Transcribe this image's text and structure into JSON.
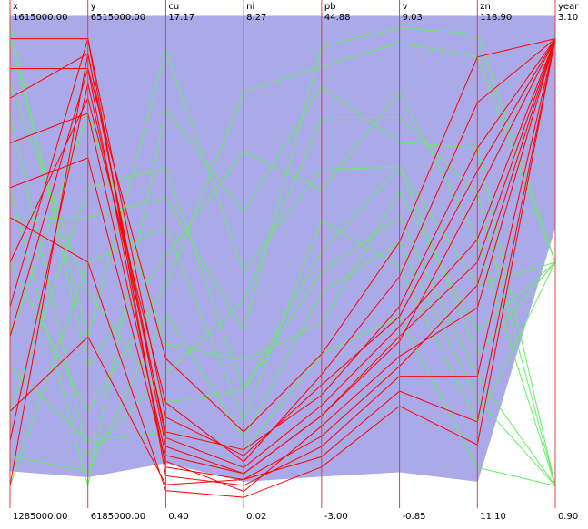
{
  "chart_data": {
    "type": "parallel",
    "axes": [
      {
        "name": "x",
        "ylim": [
          1285000,
          1615000
        ],
        "yticks": [
          {
            "value": 1285000,
            "label": "1285000.00"
          },
          {
            "value": 1615000,
            "label": "1615000.00"
          }
        ]
      },
      {
        "name": "y",
        "ylim": [
          6185000,
          6515000
        ],
        "yticks": [
          {
            "value": 6185000,
            "label": "6185000.00"
          },
          {
            "value": 6515000,
            "label": "6515000.00"
          }
        ]
      },
      {
        "name": "cu",
        "ylim": [
          0.4,
          17.17
        ],
        "yticks": [
          {
            "value": 0.4,
            "label": "0.40"
          },
          {
            "value": 17.17,
            "label": "17.17"
          }
        ]
      },
      {
        "name": "ni",
        "ylim": [
          0.02,
          8.27
        ],
        "yticks": [
          {
            "value": 0.02,
            "label": "0.02"
          },
          {
            "value": 8.27,
            "label": "8.27"
          }
        ]
      },
      {
        "name": "pb",
        "ylim": [
          -3,
          44.88
        ],
        "yticks": [
          {
            "value": -3,
            "label": "-3.00"
          },
          {
            "value": 44.88,
            "label": "44.88"
          }
        ]
      },
      {
        "name": "v",
        "ylim": [
          -0.85,
          9.03
        ],
        "yticks": [
          {
            "value": -0.85,
            "label": "-0.85"
          },
          {
            "value": 9.03,
            "label": "9.03"
          }
        ]
      },
      {
        "name": "zn",
        "ylim": [
          11.1,
          118.9
        ],
        "yticks": [
          {
            "value": 11.1,
            "label": "11.10"
          },
          {
            "value": 118.9,
            "label": "118.90"
          }
        ]
      },
      {
        "name": "year",
        "ylim": [
          0.9,
          3.1
        ],
        "yticks": [
          {
            "value": 0.9,
            "label": "0.90"
          },
          {
            "value": 3.1,
            "label": "3.10"
          }
        ]
      }
    ],
    "axis_color": "#e04040",
    "band": {
      "color": "#aaaae8",
      "upper": [
        1615000,
        6515000,
        17.17,
        8.27,
        44.88,
        9.03,
        118.9,
        3.1
      ],
      "lower": [
        1310000,
        6206000,
        1.95,
        0.47,
        0.1,
        -0.12,
        17.0,
        2.16
      ]
    },
    "series": [
      {
        "color": "#66ee66",
        "lines": [
          [
            1600000,
            6300000,
            16,
            4,
            30,
            6,
            60,
            2.0
          ],
          [
            1450000,
            6250000,
            8,
            7,
            40,
            8.5,
            110,
            2.0
          ],
          [
            1350000,
            6400000,
            12,
            2,
            20,
            5,
            40,
            1.0
          ],
          [
            1550000,
            6220000,
            5,
            3.5,
            35,
            7,
            80,
            1.0
          ],
          [
            1300000,
            6350000,
            10,
            1.5,
            25,
            4,
            30,
            2.0
          ],
          [
            1500000,
            6200000,
            14,
            5,
            38,
            6.5,
            90,
            1.0
          ],
          [
            1400000,
            6450000,
            6,
            2.5,
            15,
            5.5,
            50,
            2.0
          ],
          [
            1610000,
            6280000,
            9,
            6,
            28,
            7.5,
            70,
            1.0
          ],
          [
            1380000,
            6230000,
            3,
            1.0,
            12,
            3,
            20,
            1.0
          ],
          [
            1480000,
            6380000,
            11,
            3,
            42,
            8.8,
            115,
            2.0
          ],
          [
            1320000,
            6210000,
            7,
            1.2,
            18,
            4.5,
            35,
            1.0
          ],
          [
            1570000,
            6330000,
            4,
            2,
            22,
            6,
            45,
            2.0
          ]
        ]
      },
      {
        "color": "#ff0000",
        "lines": [
          [
            1560000,
            6490000,
            2.5,
            0.6,
            6,
            2.5,
            80,
            3.0
          ],
          [
            1400000,
            6480000,
            1.8,
            0.5,
            4,
            2.0,
            60,
            3.0
          ],
          [
            1330000,
            6470000,
            3.0,
            1.0,
            8,
            3.2,
            90,
            3.0
          ],
          [
            1600000,
            6500000,
            1.5,
            0.4,
            3,
            1.8,
            40,
            3.0
          ],
          [
            1450000,
            6460000,
            4.0,
            0.8,
            10,
            3.8,
            100,
            3.0
          ],
          [
            1500000,
            6420000,
            2.0,
            0.3,
            5,
            2.2,
            55,
            3.0
          ],
          [
            1350000,
            6300000,
            1.2,
            0.5,
            2,
            1.5,
            30,
            3.0
          ],
          [
            1580000,
            6480000,
            5.5,
            1.3,
            12,
            4.5,
            110,
            3.0
          ],
          [
            1300000,
            6490000,
            2.8,
            0.7,
            7,
            2.8,
            70,
            3.0
          ],
          [
            1480000,
            6350000,
            1.0,
            0.2,
            1,
            1.2,
            25,
            3.0
          ],
          [
            1420000,
            6500000,
            3.5,
            0.9,
            9,
            3.0,
            85,
            3.0
          ],
          [
            1530000,
            6450000,
            2.2,
            0.6,
            6,
            2.6,
            65,
            3.0
          ]
        ]
      }
    ]
  }
}
